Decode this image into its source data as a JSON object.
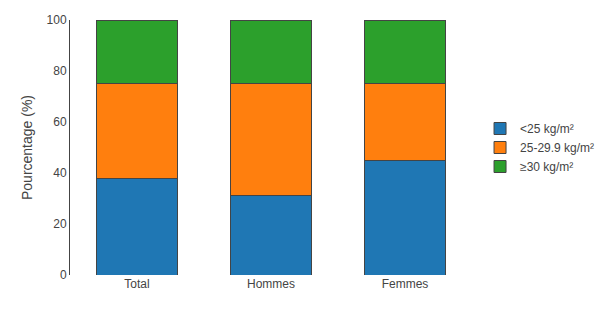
{
  "chart_data": {
    "type": "bar",
    "stacked": true,
    "categories": [
      "Total",
      "Hommes",
      "Femmes"
    ],
    "series": [
      {
        "name": "<25 kg/m²",
        "values": [
          38,
          31,
          45
        ]
      },
      {
        "name": "25-29.9 kg/m²",
        "values": [
          37,
          44,
          30
        ]
      },
      {
        "name": "≥30 kg/m²",
        "values": [
          25,
          25,
          25
        ]
      }
    ],
    "ylabel": "Pourcentage (%)",
    "ylim": [
      0,
      100
    ],
    "yticks": [
      0,
      20,
      40,
      60,
      80,
      100
    ],
    "grid": false,
    "legend": "right"
  }
}
